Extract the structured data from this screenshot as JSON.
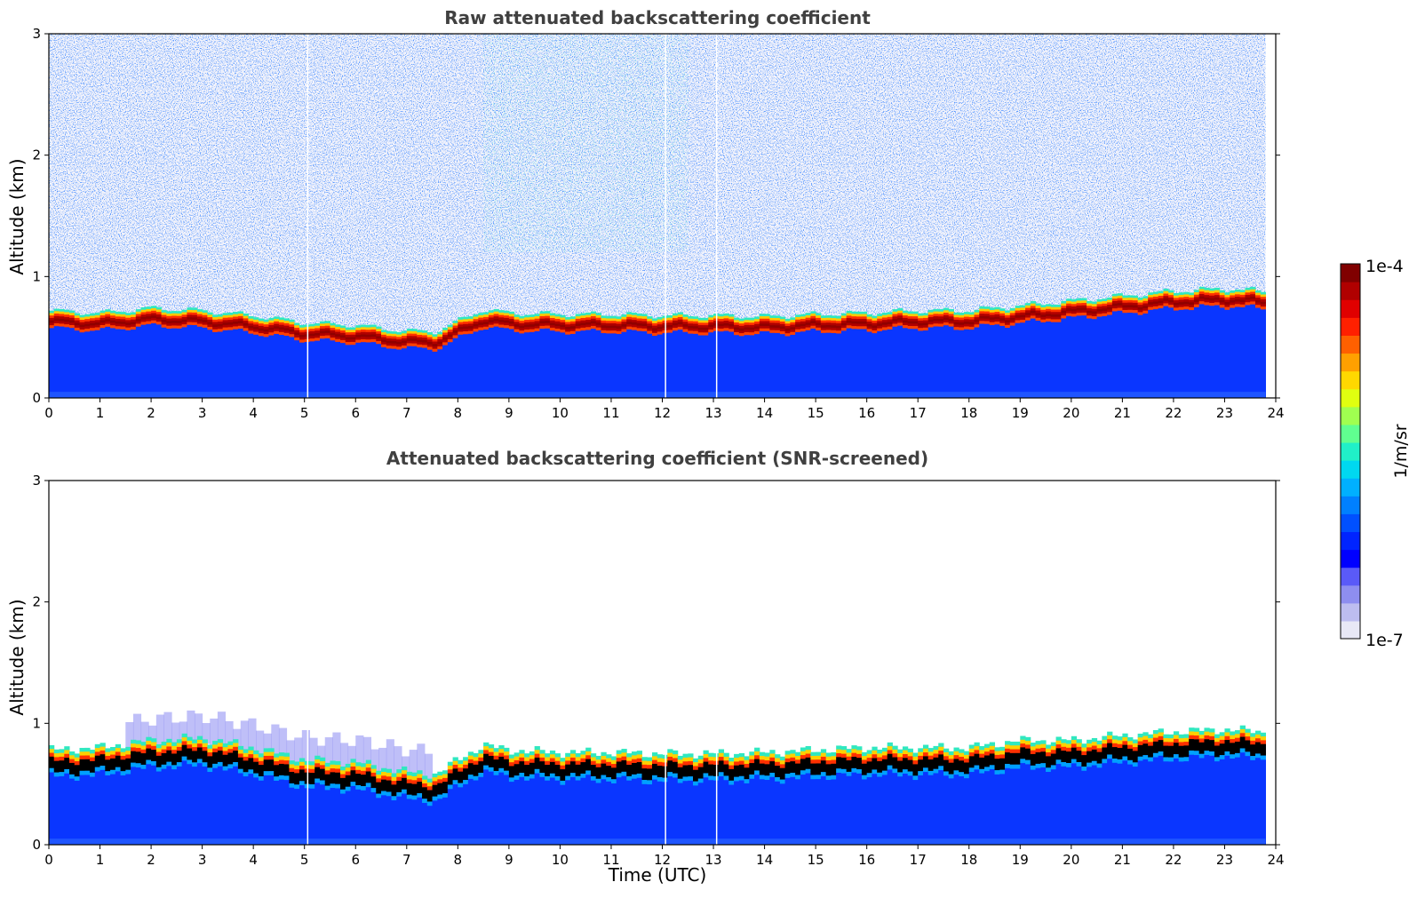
{
  "chart_data": [
    {
      "type": "heatmap",
      "title": "Raw attenuated backscattering coefficient",
      "xlabel": "",
      "ylabel": "Altitude (km)",
      "xlim": [
        0,
        24
      ],
      "ylim": [
        0,
        3
      ],
      "x_ticks": [
        "0",
        "1",
        "2",
        "3",
        "4",
        "5",
        "6",
        "7",
        "8",
        "9",
        "10",
        "11",
        "12",
        "13",
        "14",
        "15",
        "16",
        "17",
        "18",
        "19",
        "20",
        "21",
        "22",
        "23",
        "24"
      ],
      "y_ticks": [
        "0",
        "1",
        "2",
        "3"
      ],
      "data_end_time": 23.8,
      "missing_data_times": [
        5.05,
        12.05,
        13.05
      ],
      "noise_background": "noisy blue/white speckle above the layer, greener near 9-12 UTC aloft",
      "layer_top_altitude_km": {
        "time": [
          0,
          1,
          2,
          3,
          4,
          5,
          6,
          7,
          7.6,
          8,
          8.5,
          9,
          10,
          11,
          12,
          13,
          14,
          15,
          16,
          17,
          18,
          19,
          20,
          21,
          22,
          23,
          23.8
        ],
        "value": [
          0.72,
          0.7,
          0.74,
          0.72,
          0.68,
          0.62,
          0.6,
          0.55,
          0.55,
          0.63,
          0.73,
          0.7,
          0.69,
          0.69,
          0.68,
          0.68,
          0.67,
          0.69,
          0.7,
          0.72,
          0.72,
          0.76,
          0.8,
          0.84,
          0.88,
          0.9,
          0.88
        ]
      },
      "layer_thickness_km": 0.14,
      "colorscale": "jet, log scale"
    },
    {
      "type": "heatmap",
      "title": "Attenuated backscattering coefficient (SNR-screened)",
      "xlabel": "Time (UTC)",
      "ylabel": "Altitude (km)",
      "xlim": [
        0,
        24
      ],
      "ylim": [
        0,
        3
      ],
      "x_ticks": [
        "0",
        "1",
        "2",
        "3",
        "4",
        "5",
        "6",
        "7",
        "8",
        "9",
        "10",
        "11",
        "12",
        "13",
        "14",
        "15",
        "16",
        "17",
        "18",
        "19",
        "20",
        "21",
        "22",
        "23",
        "24"
      ],
      "y_ticks": [
        "0",
        "1",
        "2",
        "3"
      ],
      "data_end_time": 23.8,
      "missing_data_times": [
        5.05,
        12.05,
        13.05
      ],
      "noise_background": "screened (white) above the layer, faint blue aerosol 1.5-7.5 UTC near 0.8-1.0 km",
      "layer_top_altitude_km": {
        "time": [
          0,
          1,
          2,
          3,
          4,
          5,
          6,
          7,
          7.6,
          8,
          8.5,
          9,
          10,
          11,
          12,
          13,
          14,
          15,
          16,
          17,
          18,
          19,
          20,
          21,
          22,
          23,
          23.8
        ],
        "value": [
          0.78,
          0.8,
          0.86,
          0.88,
          0.8,
          0.7,
          0.68,
          0.6,
          0.58,
          0.7,
          0.82,
          0.78,
          0.76,
          0.76,
          0.75,
          0.75,
          0.76,
          0.78,
          0.8,
          0.8,
          0.8,
          0.86,
          0.86,
          0.9,
          0.93,
          0.95,
          0.93
        ]
      },
      "layer_thickness_km": 0.22,
      "colorscale": "jet, log scale"
    }
  ],
  "colorbar": {
    "max_label": "1e-4",
    "min_label": "1e-7",
    "unit_label": "1/m/sr",
    "colors": [
      "#e8e8f6",
      "#bdbdf0",
      "#8e8ef0",
      "#5a5af8",
      "#0000ff",
      "#0024ff",
      "#0050ff",
      "#0080ff",
      "#00b0ff",
      "#00d8f0",
      "#20f0c8",
      "#60ff90",
      "#a0ff50",
      "#e0ff10",
      "#ffd800",
      "#ffa000",
      "#ff6000",
      "#ff2000",
      "#e00000",
      "#b00000",
      "#800000"
    ]
  }
}
